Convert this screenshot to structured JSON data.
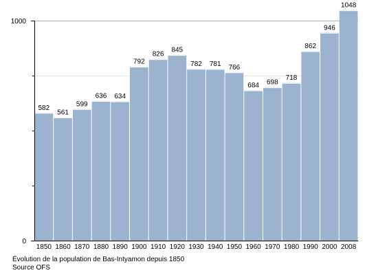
{
  "chart_data": {
    "type": "bar",
    "categories": [
      "1850",
      "1860",
      "1870",
      "1880",
      "1890",
      "1900",
      "1910",
      "1920",
      "1930",
      "1940",
      "1950",
      "1960",
      "1970",
      "1980",
      "1990",
      "2000",
      "2008"
    ],
    "values": [
      582,
      561,
      599,
      636,
      634,
      792,
      826,
      845,
      782,
      781,
      766,
      684,
      698,
      718,
      862,
      946,
      1048
    ],
    "ylim": [
      0,
      1100
    ],
    "yticks": [
      "0",
      "1000"
    ],
    "grid": true,
    "bar_color": "#9bb3cf",
    "caption": [
      "Évolution de la population de Bas-Intyamon depuis 1850",
      "Source OFS"
    ]
  }
}
